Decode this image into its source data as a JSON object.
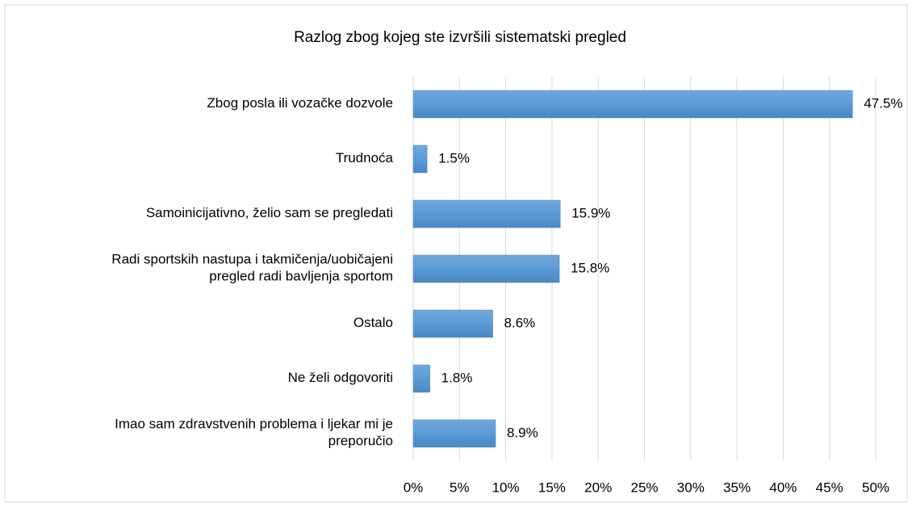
{
  "chart_data": {
    "type": "barh",
    "title": "Razlog zbog kojeg ste izvršili sistematski pregled",
    "categories": [
      "Zbog posla ili vozačke dozvole",
      "Trudnoća",
      "Samoinicijativno, želio sam se pregledati",
      "Radi sportskih nastupa i takmičenja/uobičajeni\npregled radi bavljenja sportom",
      "Ostalo",
      "Ne želi odgovoriti",
      "Imao sam zdravstvenih problema i ljekar mi je\npreporučio"
    ],
    "values": [
      47.5,
      1.5,
      15.9,
      15.8,
      8.6,
      1.8,
      8.9
    ],
    "value_labels": [
      "47.5%",
      "1.5%",
      "15.9%",
      "15.8%",
      "8.6%",
      "1.8%",
      "8.9%"
    ],
    "color": "#5b9bd5",
    "xlim": [
      0,
      50
    ],
    "xticks": [
      {
        "value": 0,
        "label": "0%"
      },
      {
        "value": 5,
        "label": "5%"
      },
      {
        "value": 10,
        "label": "10%"
      },
      {
        "value": 15,
        "label": "15%"
      },
      {
        "value": 20,
        "label": "20%"
      },
      {
        "value": 25,
        "label": "25%"
      },
      {
        "value": 30,
        "label": "30%"
      },
      {
        "value": 35,
        "label": "35%"
      },
      {
        "value": 40,
        "label": "40%"
      },
      {
        "value": 45,
        "label": "45%"
      },
      {
        "value": 50,
        "label": "50%"
      }
    ],
    "grid": true
  }
}
